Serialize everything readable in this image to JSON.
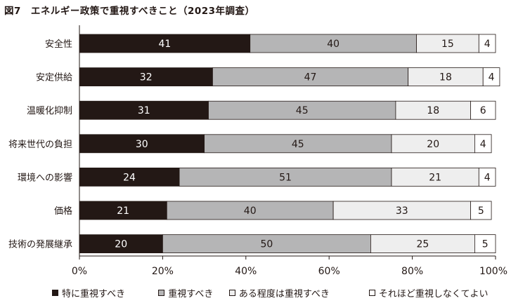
{
  "chart_data": {
    "type": "bar",
    "orientation": "horizontal",
    "stacked": true,
    "title": "図7　エネルギー政策で重視すべきこと（2023年調査）",
    "categories": [
      "安全性",
      "安定供給",
      "温暖化抑制",
      "将来世代の負担",
      "環境への影響",
      "価格",
      "技術の発展継承"
    ],
    "series": [
      {
        "name": "特に重視すべき",
        "values": [
          41,
          32,
          31,
          30,
          24,
          21,
          20
        ],
        "color": "#231815",
        "label_color": "#ffffff"
      },
      {
        "name": "重視すべき",
        "values": [
          40,
          47,
          45,
          45,
          51,
          40,
          50
        ],
        "color": "#b5b5b6",
        "label_color": "#231815"
      },
      {
        "name": "ある程度は重視すべき",
        "values": [
          15,
          18,
          18,
          20,
          21,
          33,
          25
        ],
        "color": "#eeeeee",
        "label_color": "#231815"
      },
      {
        "name": "それほど重視しなくてよい",
        "values": [
          4,
          4,
          6,
          4,
          4,
          5,
          5
        ],
        "color": "#ffffff",
        "label_color": "#231815"
      }
    ],
    "xlim": [
      0,
      100
    ],
    "xticks": [
      0,
      20,
      40,
      60,
      80,
      100
    ],
    "xtick_labels": [
      "0%",
      "20%",
      "40%",
      "60%",
      "80%",
      "100%"
    ],
    "xlabel": "",
    "ylabel": "",
    "grid": false,
    "legend_position": "bottom"
  }
}
